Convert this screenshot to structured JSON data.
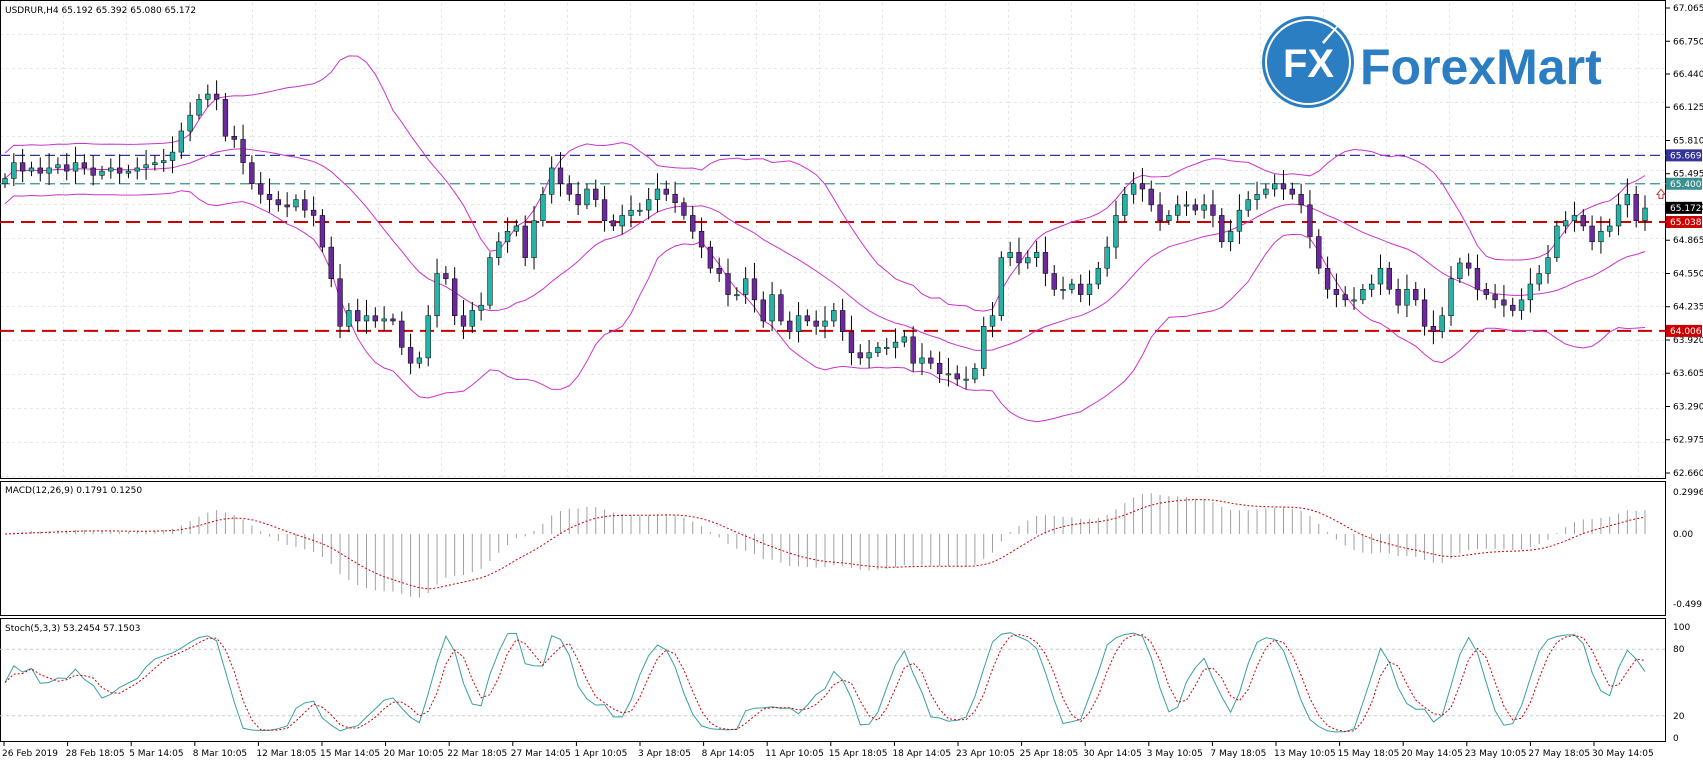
{
  "header": {
    "symbol_line": "USDRUR,H4  65.192 65.392 65.080 65.172",
    "macd_line": "MACD(12,26,9) 0.1791 0.1250",
    "stoch_line": "Stoch(5,3,3) 53.2454 57.1503"
  },
  "logo": {
    "mark": "FX",
    "brand": "ForexMart",
    "color": "#2b7ec1"
  },
  "price_axis": {
    "ticks": [
      "67.065",
      "66.750",
      "66.440",
      "66.125",
      "65.810",
      "65.495",
      "65.180",
      "64.865",
      "64.550",
      "64.235",
      "63.920",
      "63.605",
      "63.290",
      "62.975",
      "62.660"
    ]
  },
  "level_badges": [
    {
      "text": "65.669",
      "bg": "#333399"
    },
    {
      "text": "65.400",
      "bg": "#3a8f8f"
    },
    {
      "text": "65.172",
      "bg": "#000000"
    },
    {
      "text": "65.038",
      "bg": "#cc0000"
    },
    {
      "text": "64.006",
      "bg": "#cc0000"
    }
  ],
  "macd_axis": {
    "ticks": [
      "0.2996",
      "0.00",
      "-0.4991"
    ]
  },
  "stoch_axis": {
    "ticks": [
      "100",
      "80",
      "20",
      "0"
    ]
  },
  "time_axis": {
    "labels": [
      "26 Feb 2019",
      "28 Feb 18:05",
      "5 Mar 14:05",
      "8 Mar 10:05",
      "12 Mar 18:05",
      "15 Mar 14:05",
      "20 Mar 10:05",
      "22 Mar 18:05",
      "27 Mar 14:05",
      "1 Apr 10:05",
      "3 Apr 18:05",
      "8 Apr 14:05",
      "11 Apr 10:05",
      "15 Apr 18:05",
      "18 Apr 14:05",
      "23 Apr 10:05",
      "25 Apr 18:05",
      "30 Apr 14:05",
      "3 May 10:05",
      "7 May 18:05",
      "13 May 10:05",
      "15 May 18:05",
      "20 May 14:05",
      "23 May 10:05",
      "27 May 18:05",
      "30 May 14:05"
    ]
  },
  "colors": {
    "bull": "#26b2a4",
    "bear": "#6a2a9c",
    "bands": "#cc33cc",
    "support": "#cc0000",
    "resistance_blue": "#333399",
    "resistance_teal": "#3a8f8f",
    "stoch_main": "#3aa0a0",
    "stoch_signal": "#cc0000",
    "macd_signal": "#cc0000",
    "macd_hist": "#a0a0a0"
  },
  "chart_data": {
    "type": "candlestick",
    "symbol": "USDRUR",
    "timeframe": "H4",
    "ylim": [
      62.66,
      67.065
    ],
    "horizontal_levels": [
      65.669,
      65.4,
      65.038,
      64.006
    ],
    "closes": [
      65.45,
      65.6,
      65.52,
      65.55,
      65.5,
      65.55,
      65.58,
      65.52,
      65.6,
      65.55,
      65.48,
      65.52,
      65.55,
      65.5,
      65.52,
      65.55,
      65.58,
      65.6,
      65.62,
      65.7,
      65.9,
      66.05,
      66.2,
      66.25,
      66.2,
      65.85,
      65.82,
      65.6,
      65.4,
      65.3,
      65.25,
      65.2,
      65.18,
      65.25,
      65.15,
      65.1,
      64.8,
      64.5,
      64.05,
      64.2,
      64.1,
      64.15,
      64.1,
      64.12,
      64.1,
      63.85,
      63.7,
      63.75,
      64.15,
      64.55,
      64.5,
      64.15,
      64.05,
      64.2,
      64.25,
      64.7,
      64.85,
      64.95,
      65.0,
      64.7,
      65.05,
      65.3,
      65.55,
      65.4,
      65.3,
      65.2,
      65.35,
      65.25,
      65.05,
      65.0,
      65.1,
      65.15,
      65.15,
      65.25,
      65.35,
      65.3,
      65.22,
      65.1,
      64.95,
      64.8,
      64.6,
      64.55,
      64.35,
      64.35,
      64.5,
      64.3,
      64.1,
      64.35,
      64.1,
      64.0,
      64.15,
      64.1,
      64.05,
      64.1,
      64.2,
      64.0,
      63.8,
      63.75,
      63.8,
      63.85,
      63.85,
      63.9,
      63.95,
      63.7,
      63.75,
      63.7,
      63.6,
      63.6,
      63.55,
      63.55,
      63.65,
      64.05,
      64.15,
      64.7,
      64.75,
      64.65,
      64.7,
      64.75,
      64.55,
      64.4,
      64.4,
      64.45,
      64.35,
      64.45,
      64.6,
      64.8,
      65.1,
      65.3,
      65.4,
      65.35,
      65.2,
      65.05,
      65.1,
      65.2,
      65.2,
      65.15,
      65.2,
      65.1,
      64.85,
      64.95,
      65.15,
      65.25,
      65.3,
      65.35,
      65.4,
      65.35,
      65.3,
      65.2,
      64.9,
      64.6,
      64.4,
      64.35,
      64.3,
      64.3,
      64.4,
      64.45,
      64.6,
      64.4,
      64.25,
      64.4,
      64.3,
      64.05,
      64.0,
      64.15,
      64.5,
      64.65,
      64.6,
      64.4,
      64.35,
      64.3,
      64.25,
      64.2,
      64.3,
      64.45,
      64.55,
      64.7,
      65.0,
      65.05,
      65.1,
      65.0,
      64.85,
      64.95,
      65.0,
      65.2,
      65.3,
      65.05,
      65.17
    ]
  }
}
